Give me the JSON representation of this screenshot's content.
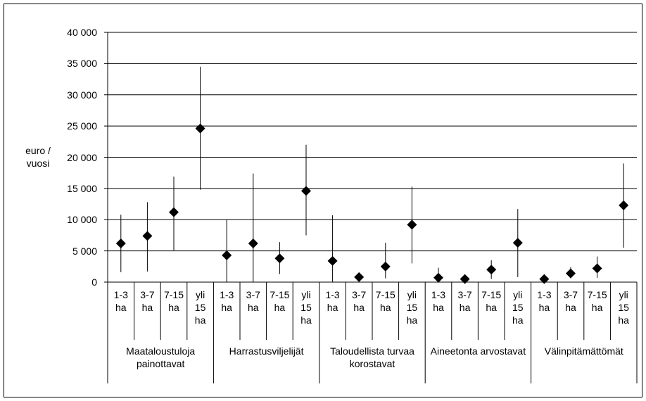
{
  "chart_data": {
    "type": "errorbar",
    "y_label": "euro / vuosi",
    "groups": [
      "Maataloustuloja painottavat",
      "Harrastusviljelijät",
      "Taloudellista turvaa korostavat",
      "Aineetonta arvostavat",
      "Välinpitämättömät"
    ],
    "categories": [
      "1-3 ha",
      "3-7 ha",
      "7-15 ha",
      "yli 15 ha",
      "1-3 ha",
      "3-7 ha",
      "7-15 ha",
      "yli 15 ha",
      "1-3 ha",
      "3-7 ha",
      "7-15 ha",
      "yli 15 ha",
      "1-3 ha",
      "3-7 ha",
      "7-15 ha",
      "yli 15 ha",
      "1-3 ha",
      "3-7 ha",
      "7-15 ha",
      "yli 15 ha"
    ],
    "values": [
      6200,
      7400,
      11200,
      24600,
      4300,
      6200,
      3800,
      14600,
      3400,
      800,
      2500,
      9200,
      700,
      500,
      2000,
      6300,
      500,
      1400,
      2200,
      12300
    ],
    "low": [
      1600,
      1700,
      5100,
      14800,
      0,
      0,
      1300,
      7500,
      0,
      300,
      600,
      3000,
      0,
      200,
      500,
      800,
      200,
      600,
      700,
      5500
    ],
    "high": [
      10800,
      12800,
      16900,
      34500,
      10000,
      17400,
      6400,
      22000,
      10700,
      1200,
      6300,
      15300,
      2300,
      800,
      3500,
      11700,
      800,
      2400,
      4100,
      19000
    ],
    "color": "#000000",
    "ylim": [
      0,
      40000
    ],
    "yticks": [
      0,
      {
        "value": 5000,
        "label": "5 000"
      },
      {
        "value": 10000,
        "label": "10 000"
      },
      {
        "value": 15000,
        "label": "15 000"
      },
      {
        "value": 20000,
        "label": "20 000"
      },
      {
        "value": 25000,
        "label": "25 000"
      },
      {
        "value": 30000,
        "label": "30 000"
      },
      {
        "value": 35000,
        "label": "35 000"
      },
      {
        "value": 40000,
        "label": "40 000"
      }
    ],
    "grid": true
  }
}
